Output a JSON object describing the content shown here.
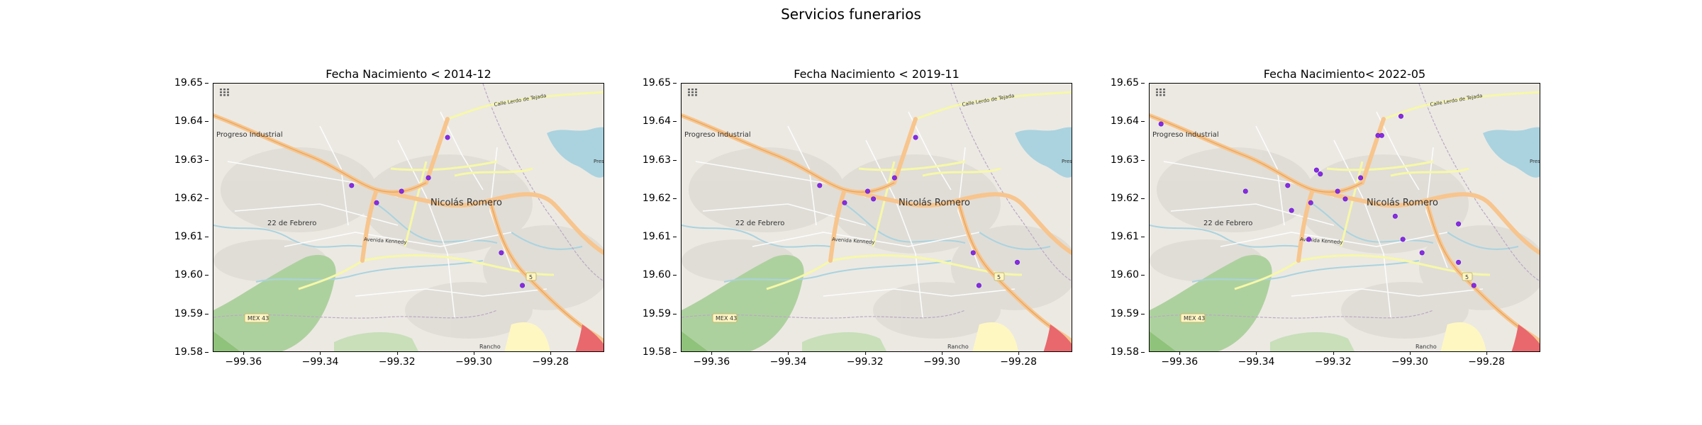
{
  "figure": {
    "title": "Servicios funerarios"
  },
  "map_labels": {
    "progreso": "Progreso Industrial",
    "febrero": "22 de Febrero",
    "nicolas": "Nicolás Romero",
    "avenida": "Avenida Kennedy",
    "calle": "Calle Lerdo de Tejada",
    "mex43": "MEX 43",
    "rancho": "Rancho",
    "route5": "5",
    "presa": "Presa"
  },
  "chart_data": [
    {
      "type": "scatter",
      "title": "Fecha Nacimiento < 2014-12",
      "xlim": [
        -99.368,
        -99.266
      ],
      "ylim": [
        19.58,
        19.65
      ],
      "xticks": [
        "−99.36",
        "−99.34",
        "−99.32",
        "−99.30",
        "−99.28"
      ],
      "yticks": [
        "19.65",
        "19.64",
        "19.63",
        "19.62",
        "19.61",
        "19.60",
        "19.59",
        "19.58"
      ],
      "points": [
        {
          "x": -99.307,
          "y": 19.636
        },
        {
          "x": -99.332,
          "y": 19.6235
        },
        {
          "x": -99.3255,
          "y": 19.619
        },
        {
          "x": -99.319,
          "y": 19.622
        },
        {
          "x": -99.312,
          "y": 19.6255
        },
        {
          "x": -99.293,
          "y": 19.606
        },
        {
          "x": -99.2875,
          "y": 19.5975
        }
      ]
    },
    {
      "type": "scatter",
      "title": "Fecha Nacimiento < 2019-11",
      "xlim": [
        -99.368,
        -99.266
      ],
      "ylim": [
        19.58,
        19.65
      ],
      "xticks": [
        "−99.36",
        "−99.34",
        "−99.32",
        "−99.30",
        "−99.28"
      ],
      "yticks": [
        "19.65",
        "19.64",
        "19.63",
        "19.62",
        "19.61",
        "19.60",
        "19.59",
        "19.58"
      ],
      "points": [
        {
          "x": -99.307,
          "y": 19.636
        },
        {
          "x": -99.332,
          "y": 19.6235
        },
        {
          "x": -99.3255,
          "y": 19.619
        },
        {
          "x": -99.3195,
          "y": 19.622
        },
        {
          "x": -99.318,
          "y": 19.62
        },
        {
          "x": -99.3125,
          "y": 19.6255
        },
        {
          "x": -99.292,
          "y": 19.606
        },
        {
          "x": -99.2905,
          "y": 19.5975
        },
        {
          "x": -99.2805,
          "y": 19.6035
        }
      ]
    },
    {
      "type": "scatter",
      "title": "Fecha Nacimiento< 2022-05",
      "xlim": [
        -99.368,
        -99.266
      ],
      "ylim": [
        19.58,
        19.65
      ],
      "xticks": [
        "−99.36",
        "−99.34",
        "−99.32",
        "−99.30",
        "−99.28"
      ],
      "yticks": [
        "19.65",
        "19.64",
        "19.63",
        "19.62",
        "19.61",
        "19.60",
        "19.59",
        "19.58"
      ],
      "points": [
        {
          "x": -99.365,
          "y": 19.6395
        },
        {
          "x": -99.3025,
          "y": 19.6415
        },
        {
          "x": -99.3085,
          "y": 19.6365
        },
        {
          "x": -99.3075,
          "y": 19.6365
        },
        {
          "x": -99.343,
          "y": 19.622
        },
        {
          "x": -99.332,
          "y": 19.6235
        },
        {
          "x": -99.3235,
          "y": 19.6265
        },
        {
          "x": -99.3245,
          "y": 19.6275
        },
        {
          "x": -99.313,
          "y": 19.6255
        },
        {
          "x": -99.319,
          "y": 19.622
        },
        {
          "x": -99.317,
          "y": 19.62
        },
        {
          "x": -99.326,
          "y": 19.619
        },
        {
          "x": -99.331,
          "y": 19.617
        },
        {
          "x": -99.3265,
          "y": 19.6095
        },
        {
          "x": -99.304,
          "y": 19.6155
        },
        {
          "x": -99.302,
          "y": 19.6095
        },
        {
          "x": -99.297,
          "y": 19.606
        },
        {
          "x": -99.2875,
          "y": 19.6135
        },
        {
          "x": -99.2875,
          "y": 19.6035
        },
        {
          "x": -99.2835,
          "y": 19.5975
        }
      ]
    }
  ]
}
